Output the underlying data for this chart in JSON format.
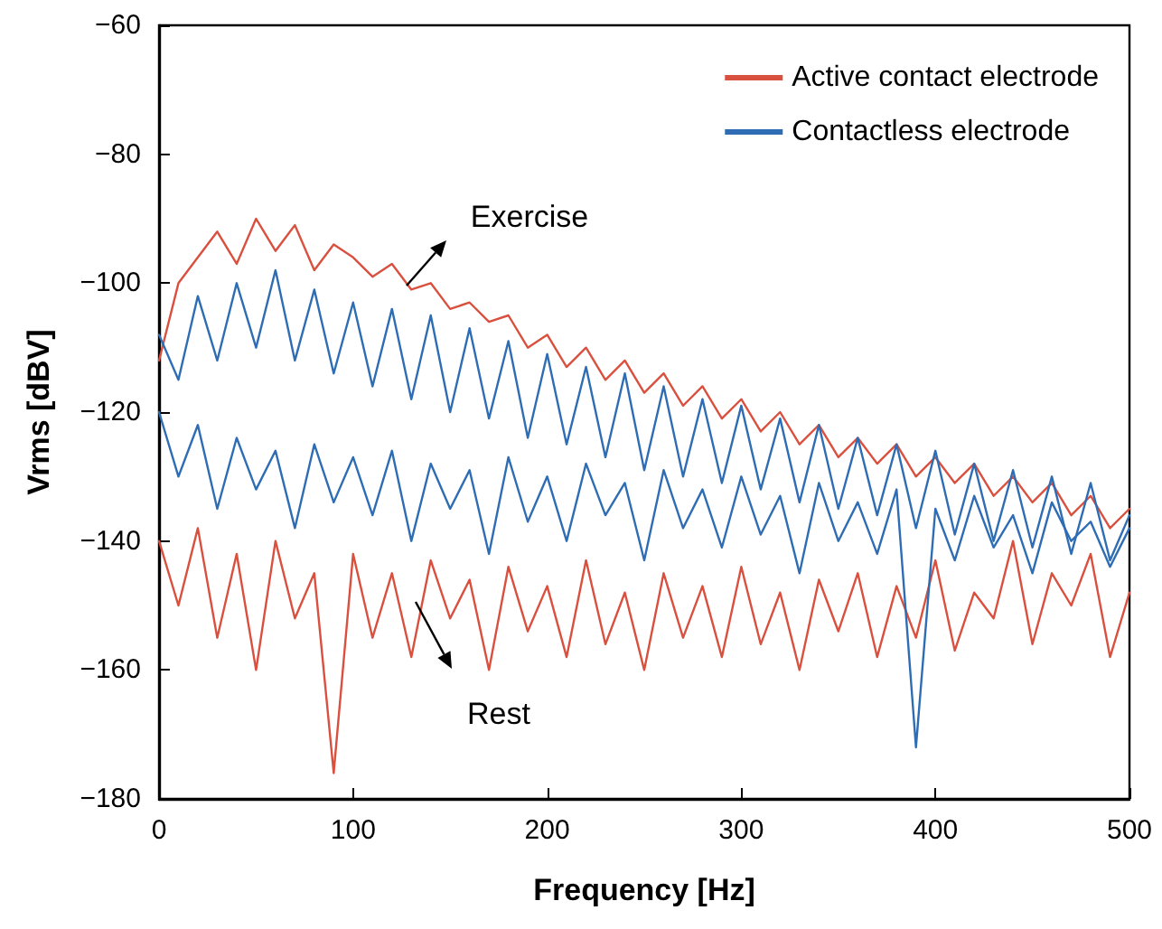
{
  "chart_data": {
    "type": "line",
    "xlabel": "Frequency [Hz]",
    "ylabel": "Vrms [dBV]",
    "x": [
      0,
      10,
      20,
      30,
      40,
      50,
      60,
      70,
      80,
      90,
      100,
      110,
      120,
      130,
      140,
      150,
      160,
      170,
      180,
      190,
      200,
      210,
      220,
      230,
      240,
      250,
      260,
      270,
      280,
      290,
      300,
      310,
      320,
      330,
      340,
      350,
      360,
      370,
      380,
      390,
      400,
      410,
      420,
      430,
      440,
      450,
      460,
      470,
      480,
      490,
      500
    ],
    "series": [
      {
        "name": "Active contact electrode",
        "color": "#d9503f",
        "values": [
          -112,
          -100,
          -96,
          -92,
          -97,
          -90,
          -95,
          -91,
          -98,
          -94,
          -96,
          -99,
          -97,
          -101,
          -100,
          -104,
          -103,
          -106,
          -105,
          -110,
          -108,
          -113,
          -110,
          -115,
          -112,
          -117,
          -114,
          -119,
          -116,
          -121,
          -118,
          -123,
          -120,
          -125,
          -122,
          -127,
          -124,
          -128,
          -125,
          -130,
          -127,
          -131,
          -128,
          -133,
          -130,
          -134,
          -131,
          -136,
          -133,
          -138,
          -135
        ]
      },
      {
        "color": "#d9503f",
        "values": [
          -140,
          -150,
          -138,
          -155,
          -142,
          -160,
          -140,
          -152,
          -145,
          -176,
          -142,
          -155,
          -145,
          -158,
          -143,
          -152,
          -146,
          -160,
          -144,
          -154,
          -147,
          -158,
          -143,
          -156,
          -148,
          -160,
          -145,
          -155,
          -147,
          -158,
          -144,
          -156,
          -148,
          -160,
          -146,
          -154,
          -145,
          -158,
          -147,
          -155,
          -143,
          -157,
          -148,
          -152,
          -140,
          -156,
          -145,
          -150,
          -142,
          -158,
          -148
        ]
      },
      {
        "name": "Contactless electrode",
        "color": "#2e6db4",
        "values": [
          -108,
          -115,
          -102,
          -112,
          -100,
          -110,
          -98,
          -112,
          -101,
          -114,
          -103,
          -116,
          -104,
          -118,
          -105,
          -120,
          -107,
          -121,
          -109,
          -124,
          -111,
          -125,
          -113,
          -127,
          -114,
          -129,
          -116,
          -130,
          -118,
          -131,
          -119,
          -132,
          -121,
          -134,
          -122,
          -135,
          -124,
          -136,
          -125,
          -138,
          -126,
          -139,
          -128,
          -140,
          -129,
          -141,
          -130,
          -142,
          -131,
          -143,
          -136
        ]
      },
      {
        "color": "#2e6db4",
        "values": [
          -120,
          -130,
          -122,
          -135,
          -124,
          -132,
          -126,
          -138,
          -125,
          -134,
          -127,
          -136,
          -126,
          -140,
          -128,
          -135,
          -129,
          -142,
          -127,
          -137,
          -130,
          -140,
          -128,
          -136,
          -131,
          -143,
          -129,
          -138,
          -132,
          -141,
          -130,
          -139,
          -133,
          -145,
          -131,
          -140,
          -134,
          -142,
          -132,
          -172,
          -135,
          -143,
          -133,
          -141,
          -136,
          -145,
          -134,
          -140,
          -137,
          -144,
          -138
        ]
      }
    ],
    "annotations": [
      "Exercise",
      "Rest"
    ],
    "xlim": [
      0,
      500
    ],
    "xticks": [
      0,
      100,
      200,
      300,
      400,
      500
    ],
    "ylim": [
      -180,
      -60
    ],
    "yticks": [
      -180,
      -160,
      -140,
      -120,
      -100,
      -80,
      -60
    ],
    "grid": false,
    "legend": "top right",
    "marker": "none",
    "line_style": "solid"
  }
}
